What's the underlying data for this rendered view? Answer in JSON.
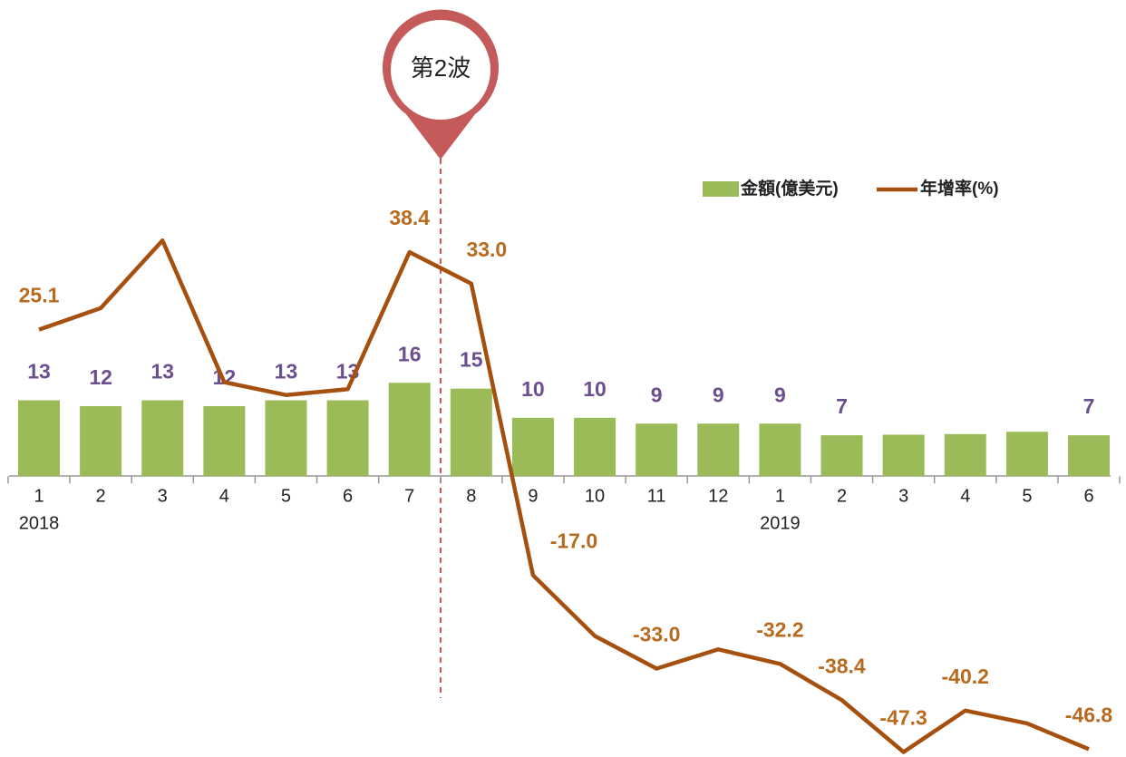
{
  "chart_data": {
    "type": "bar_line",
    "annotation": "第2波",
    "categories": [
      "1",
      "2",
      "3",
      "4",
      "5",
      "6",
      "7",
      "8",
      "9",
      "10",
      "11",
      "12",
      "1",
      "2",
      "3",
      "4",
      "5",
      "6"
    ],
    "year_labels": [
      "2018",
      "2019"
    ],
    "ylim": [
      -48,
      81
    ],
    "legend": "top-right",
    "series": [
      {
        "name": "金額(億美元)",
        "type": "bar",
        "color": "#9bbb59",
        "label_color": "#6b4f8e",
        "values": [
          13,
          12,
          13,
          12,
          13,
          13,
          16,
          15,
          10,
          10,
          9,
          9,
          9,
          7,
          7.1,
          7.2,
          7.6,
          7
        ],
        "value_labels": [
          "13",
          "12",
          "13",
          "12",
          "13",
          "13",
          "16",
          "15",
          "10",
          "10",
          "9",
          "9",
          "9",
          "7",
          null,
          null,
          null,
          "7"
        ]
      },
      {
        "name": "年增率(%)",
        "type": "line",
        "color": "#a5500f",
        "label_color": "#b86a1e",
        "values": [
          25.1,
          28.8,
          40.4,
          16.1,
          13.9,
          14.9,
          38.4,
          33.0,
          -17.0,
          -27.4,
          -33.0,
          -29.7,
          -32.2,
          -38.4,
          -47.3,
          -40.2,
          -42.4,
          -46.8
        ],
        "value_labels": [
          "25.1",
          null,
          null,
          null,
          null,
          null,
          "38.4",
          "33.0",
          "-17.0",
          null,
          "-33.0",
          null,
          "-32.2",
          "-38.4",
          "-47.3",
          "-40.2",
          null,
          "-46.8"
        ]
      }
    ]
  }
}
